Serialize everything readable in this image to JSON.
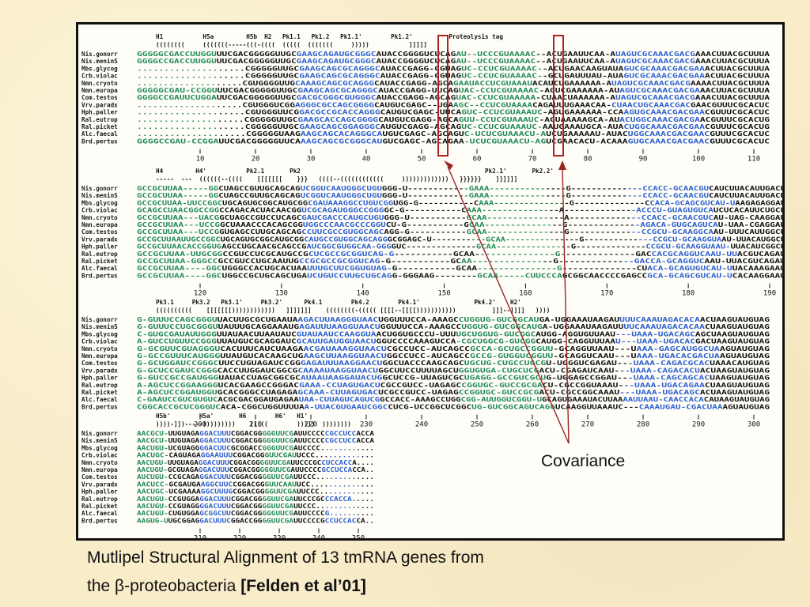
{
  "caption": {
    "line1": "Mutlipel Structural Alignment of 13 tmRNA genes from",
    "line2_plain": "the β-proteobacteria ",
    "line2_bold": "[Felden et al’01]"
  },
  "annotation": {
    "label": "Covariance"
  },
  "colors": {
    "green": "#1f8a55",
    "blue": "#2a5fd0",
    "red": "#d53a3a",
    "arrow": "#9a2424",
    "box": "#b12020"
  },
  "species": [
    "Nis.gonorr",
    "Nis.meninS",
    "Mbs.glycog",
    "Crb.violac",
    "Nmn.cryoto",
    "Nmn.europa",
    "Com.testos",
    "Vrv.paradx",
    "Hph.paller",
    "Ral.eutrop",
    "Ral.picket",
    "Alc.faecal",
    "Brd.pertus"
  ],
  "blocks": [
    {
      "labels": "H1           H5a         H5b  H2   Pk1.1   Pk1.2   Pk1.1'        Pk1.2'          Proteolysis tag",
      "structure": "((((((((     (((((((-----(((-((((  (((((  (((((((     )))))           ]]]]]",
      "ruler": [
        "10",
        "20",
        "30",
        "40",
        "50",
        "60",
        "70",
        "80",
        "90",
        "100",
        "110"
      ],
      "rows": [
        "GGGGGCGACCUUGGUUUCGACGGGGGUUGCGAAGCAGAUGCGGGCAUACCGGGGUCUCAGAU--UCCCGUAAAAC--ACUGAAUUCAA-AUAGUCGCAAACGACGAAACUUACGCUUUA",
        "GGGGCCGACCUUGGUUUCGACGGGGGUUGCGAAGCAGAUGCGGGCAUACCGGGGUCUCAGAU--UCCCGUAAAAC--ACUGAAUUCAA-AUAGUCGCAAACGACGAAACUUACGCUUUA",
        "....................CGGGGGUUGCGAAGCAGCGCAGGGCAUACCGAGG-CGUAGUC-CCUCGUAAAAC--ACUGAACAAGUAUAGUCGCAAACGACGAAACUUACGCUUUA",
        "....................CGGGGGUUGCGAAGCAGCGCAGGGCAUACCGAGG-CGUAGUC-CCUCGUAAAAC--GCUGAUUUAU-AUAGUCGCAAACGACGAAACUUACGCUUUA",
        "....................CGUGGGGUUGCAAAGCAGCGCAGGGCAUACCGAGG-AGCAGAAUACCUCGUAAAUACAUCUGAAAAAA-AUAGUCGCAAACGACGAAAACUUACGCUUUA",
        "GGGGGCGAU-CCGGUUUCGACGGGGGUUGCGAAGCAGCGCAGGGCAUACCGAGG-UUCAGUAC-CCUCGUAAAAC-AGUCGAAAAAA-AUAGUCGCAAACGACGAAACUUACGCUUUA",
        "GGGGCCGAUUCUGGAUUCGACGGGGGUUGCGACGCGGGCGUGGGCAUACCGAGG-AGCAGUAC-CCUCGUAAAAA-CUAACUAAAAAA-AUAGUCGCAAACGACGAAACUUACGCUUUA",
        "....................CGUGGGUCGGAGGGCGCCAGCGGGGCAUGUCGAGC--UGAAGC--CCUCGUAAAACAGAUUUGAAACAA-CUAACUGCAAACGACGAACGUUUCGCACUC",
        "....................CGUGGGUUCGGACGCCGCACCAGGGCAUGUCGAGC-UUCAGUC-CCUCGUAAAUC-AGUGAAAAAA-CCAAGUGCAAACGACGAACGUUUCGCACUC",
        "....................CGGGGGUUGCGAAGCACCAGCGGGGCAUGUCGAGG-AGCAGUU-CCUCGUAAAUC-AGUAAAAAGCA-AUACUGGCAAACGACGAACGUUUCGCACUG",
        "....................CGGGGGUUGCGAAGCAGCGGAGGGCAUGUCGAGG-AGCAGUC-CCUCGUAAAUC-AAUGAAAUGCA-AUACUGGCAAACGACGAACGUUUCGCACUG",
        "....................CGGGGGUAAGAAGCAGCACAGGGCAUGUCGAGC-AGCAGUC-UCUCGUAAACU-AUCUGAAAAAU-AUACUGGCAAACGACGAACGUUUCGCACUC",
        "GGGGCCGAU-CCGGAUUCGACGGGGGUUCAAAGCAGCGCGGGCAUGUCGAGC-AGCAGAA-UCUCGUAAACU-AGUCGAACACU-ACAAAGUGCAAACGACGAACGUUUCGCACUC"
      ]
    },
    {
      "labels": "H4         H4'           Pk2.1       Pk2                                                   Pk2.1'       Pk2.2'",
      "structure": "-----  ---  ((((((--((((    [[[[[[[    }}}   ((((--((((((((((((     )))))))))))))   }}}}}}    ]]]]]]",
      "ruler": [
        "120",
        "130",
        "140",
        "150",
        "160",
        "170",
        "180",
        "190"
      ],
      "rows": [
        "GCCGCUUAA-----GGCUAGCCGUUGCAGCAGUCGGUCAAUGGGCUGUGGG-U------------GAAA---------------G--------------CCACC-GCAACGUCAUCUUACAUUGACU",
        "GCCGCUUAA-----GGCUAGCCGUUGCAGCAGUCGGUCAAUGGGCUGUGGG-U------------GAAA---------------G--------------CCACC-GCAACGUCAUCUUACAUUGACU",
        "GCCGCUUAA-UUCCGGCUGCAGUGCGGCAUGCGGCGAUAAAGGCCUGUCGGUGG-G-----------CAAA---------------G--------------CCACA-GCAGCGUCAU-UAAGAGAGGAU",
        "GCAGCCUAACGGCCGGCCAGACACUACAACGGUCGCAGAUGGGCCGGGGC-G-----------CAAA---------------A--------------ACCCU-GUAGUGUCAUCUCACAUUCUGCU",
        "GCCGCUUAA---UACGGCUAGCCGUCCUCAGCGAUCGACCCAUGCUGUGGG-U-----------GCAA---------------A--------------CCACC-GCAACGUCAU-UAG-CAAGGAU",
        "GCCGCUUAA---UCCGGCUAAACCCACAGCGGUGGCCCAACGCCCGGUCU-G-----------GCAA---------------G--------------AGACA-GUGCAGUCAU-UAA-CGAGGAU",
        "GCCGCUUAA---UCCGGUGAGCCUUGCAGCAGCCUUCGCCGUGGCAGCAGG-G-----------GCAA---------------G--------------CCGCU-GCAAGGCAAU-UUUCAUUGGCU",
        "GCCGCUUAAUUGCCGGCUGCAGUGCGGCAUGCGGCAUGCCGUGGCAGCAGGGCGGAGC-U-----------GCAA---------------G--------------CCGCU-GCAAGGUAAU-UUACAUGGCU",
        "GCCGCUUAACACCGGUGAGCCUGCAACGCAGCCGAUCGGCGUGGCAA-GGGGUC--------------GCAA---------------G--------------CCGCU-GCAAGGUAAU-UUACAUCGGCU",
        "GCCGCUUAA-UUGCGGCCGUCCUCGCAUGCCGCUCGCCGCGGUCAG-G-----------GCAA---------------G--------------GACCACGCAGGUCAAU-UUACGUCAGAU",
        "GCCGCUUAA-GGGCCGCCGUCCUGCAAUUGCCGCGCCGCGGUCAG-G-----------GCAA---------------G--------------GACCA-GCAGGUCAAU-UUACGUCAGAU",
        "GCCGCUUAA----GGCUGGGCCACUGCACUAAUUUGCUUCGGUGUAG-G-----------GCAA---------------G--------------CUACA-GCAGUGUCAU-UUACAAAGAAU",
        "GCCGCUUAA----GGCUGGCCGCUGCAGCUGAUCUGUCCUUGCUGCAGG-GGGAAG--------GCAA-----CUUCCCAGCGGCAACCCCGAGCCGCA-GCAGCGUCAU-UCACAAGGAAU"
      ]
    },
    {
      "labels": "Pk3.1     Pk3.2   Pk3.1'     Pk3.2'      Pk4.1        Pk4.2        Pk4.1'               Pk4.2'    H2'",
      "structure": "((((((((((    [[[[[[[))))))))))))   ]]]]]]]    ((((((((-((((( [[[[--[[[[)))))))))))          ]]]--]]]]   ))))",
      "ruler": [
        "200",
        "210",
        "220",
        "230",
        "240",
        "250",
        "260",
        "270",
        "280",
        "290",
        "300"
      ],
      "rows": [
        "G-GUUUCCAGCGGGUUACUUGCGCUGAAUAAGACUUAAGGGUAACUGGUUUCCA-AAAGCCUGGUG-GUCGGCAUGA-UGGAAAUAAGAUUUUCAAAUAGACACAACUAAGUAUGUAG",
        "G-GUUUCCUGCGGGUUAUUUGCAGGAAAUGAGAUUUAAGGUAACUGGUUUCCA-AAAGCCUGGUG-GUCGGCAUGA-UGGAAAUAAGAUUUUCAAAUAGACACAACUAAGUAUGUAG",
        "C-GUGCGAUAUUGGGUUAUAACUUAAUAUCGUAUAAUCCAAGGUAACUGGUGCCCU-UUUUGCUGGUG-GUCGGCAUGG-AGGUGUUAAU---UAAA-UGACAGCAGCUAAGUAUGUAG",
        "A-GUCCUGUUCCGGGUUAUGUCGCAGGAUCGCAUUGAUGGUAACUGGUCCCCAAAGUCCA-CGCUGGCG-GUCGGCAUGG-CAGGUUUAAU---UAAA-UGACACGACUAAGUAUGUAG",
        "G-GCGUUCGUAGGGUCACUUUCAUCUAAGAACGAUAAAGGUAACUCGCCUCC-AUCAGCCGCCA-GCUGCCGGUU-GCAGGUUAAU---UAAA-GAGCAUGGCUAAGUAUGUAG",
        "G-GCCGUUUCAUGGGUUAUGUCACAAGCUGAAGCUUAAGGUAACUGGCCUCC-AUCAGCCGCCG-GUGGUCGGUU-GCAGGUCAAU---UAAA-UGACACGACUAAGUAUGUAG",
        "G-GCUGGAUCCGGGCUUCCUGUAGAUCCGGGAGAUUUAAGGAACUGGCUACCCAAGCAGCUGCUG-CUGCCUGCGU-UGGGUCGAGAU---UAAA-CAGACGCACUAAACAUGUAG",
        "G-GCUCCGAUCCGGGCACCUUGGAUCGGCGCAAAAUAAGGUAACUGGCUUCCUUUUAGCUGGUGUGA-CUGCUCGACU-CGAGAUCAAU---UAAA-CAGACACUACUAAGUAUGUAG",
        "G-GUCCGCCGAUGGGUAUACCUAGCGGCGCAUAAUAAGGAUACUGGCUCCG-UUAGUCGCUGAGG-GCCGUCGCUG-UGGAGCCGGAU---UAAA-CAGCAGCACUAAGUAUGUAG",
        "A-AGCUCCGGAAGGGUCACGAAGCCGGGACGAAA-CCUAGUGACUCGCCGUCC-UAGAGCCGGUGC-GUCCGCGACU-CGCCGGUAAAU---UAAA-UGACAGAACUAAGUAUGUAG",
        "A-AGCUCCGGAUGGUGCACGGGCCUAGAGAGCAAA-CUUAGUGACUCGCCGUCC-UAGAGCCGGUGC-GUCCGCGACU-CGCCGGCAAAU---UAAA-UGACAGCACUAAGUAUGUAG",
        "C-GAAUCCGUCGUGUCACGCGACGGAUGAGAAUAA-CUUAGUCAGUCGGCCACC-AAAGCCUGGCGG-AUUGGUCGGU-UGCAGUGAAAUACUUAAAAUUAAU-CAACCACACAUAAGUAUGUAG",
        "CGGCACCGCUCGGGUCACA-CGGCUGGUUUUAA-UUACGUGAAUCGGCCUCG-UCCGGCUCGGCUG-GUCGGCAGUCAGGUCAAGGUUAAAUC---CAAAUGAU-CGACUAAAGUAUGUAG"
      ]
    },
    {
      "labels": "H5b'        H5a'       H6        H6'   H1'",
      "structure": "))))-]])-----)))))))))    (((((        )))))  ))))))))",
      "ruler": [
        "310",
        "320",
        "330",
        "340",
        "350"
      ],
      "rows": [
        "AACGCU-UUGUAGAGGACUUUCGGACGGGGGUUCGAUUCCCCCGCCUCCACCA",
        "AACGCU-UUGUAGAGGACUUUCGGACGGGGGUUCGAUUCCCCCGCCUCCACCA",
        "AACUGU-UCGUAGGGGACUUCGCGGACCGGGUUCGAUCCCC............",
        "AACUGC-CAGUAGAGGAAUUUCGGACGGGUUCGAUUCCC.............",
        "AACUGU-UUGUAGAGGACUUUCGGACGGGGUUCGAUUCCCGCCUCCACCA....",
        "AACUGU-GCGUAGAGGACUUUCGGACGGGGGUUCGAUUCCCCGCCUCCACCA..",
        "AUCUGU-CCGCAGAGGACUUUCGGACGGGGUUCGAUUCCC.............",
        "AACUCC-GCGAUGAAGGCUUCCGGACGGGUUCAAUUCC..............",
        "AACUGC-UCGAAAAGGCUUUGCGGACGGGGUUCGAUUCCC............",
        "AACUGU-CCGUGGAGGACUUUCGGACGGGGUUCGAUUCCCGCCCACCA.....",
        "AACUGU-CCGUAGGGGACUUUCGGACGGGGUUCGAUUCCC.............",
        "AACUGU-CUGUGGAGCGGCUUCGGACGGGGGUUCGAUUCCCCG..........",
        "AAGUG-UUGCGGAGGACUUUCGGACCGGGGUUCGAUUCCCCGCCUCCACCA.."
      ]
    }
  ]
}
